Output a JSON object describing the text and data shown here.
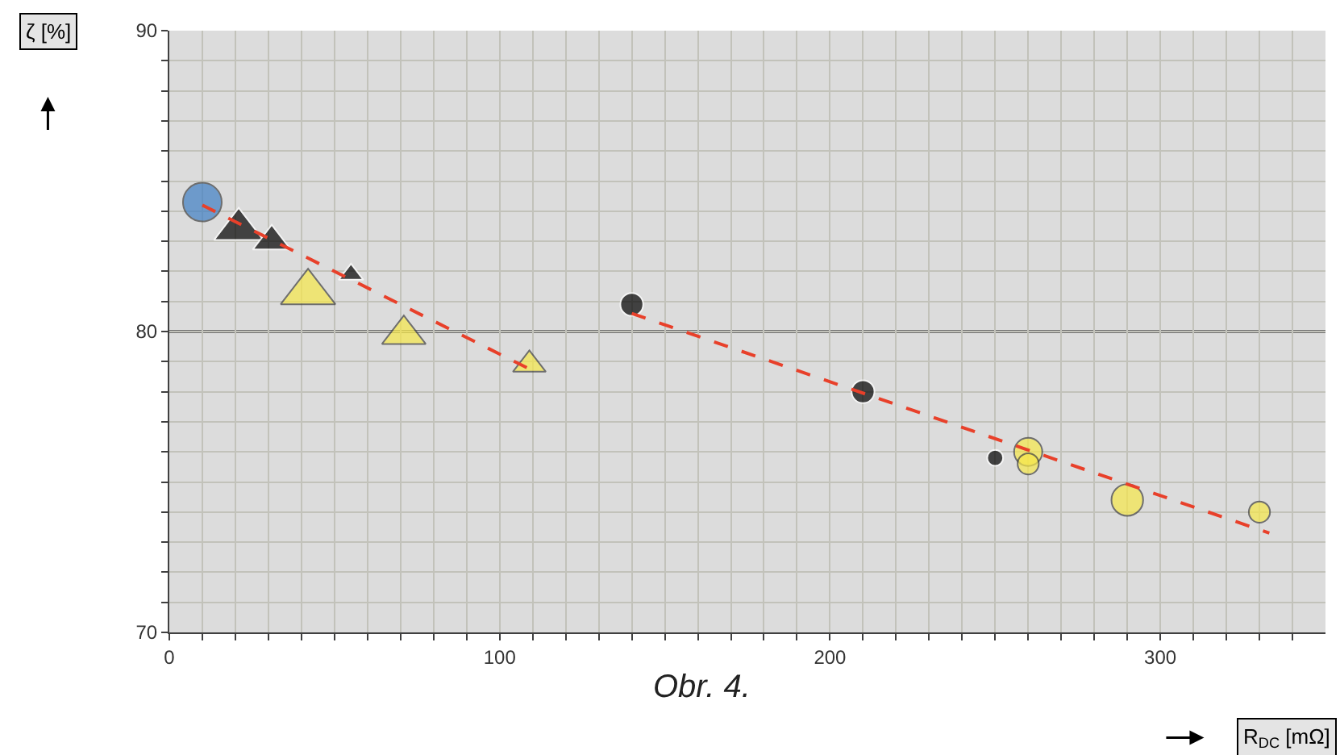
{
  "chart_data": {
    "type": "bubble",
    "xlabel": "R$_{DC}$ [mΩ]",
    "ylabel": "ζ [%]",
    "annotations": [
      "Obr. 4."
    ],
    "xlim": [
      0,
      350
    ],
    "ylim": [
      70,
      90
    ],
    "xticks": [
      0,
      {
        "value": 10,
        "label": null
      },
      {
        "value": 20,
        "label": null
      },
      {
        "value": 30,
        "label": null
      },
      {
        "value": 40,
        "label": null
      },
      {
        "value": 50,
        "label": null
      },
      {
        "value": 60,
        "label": null
      },
      {
        "value": 70,
        "label": null
      },
      {
        "value": 80,
        "label": null
      },
      {
        "value": 90,
        "label": null
      },
      100,
      {
        "value": 110,
        "label": null
      },
      {
        "value": 120,
        "label": null
      },
      {
        "value": 130,
        "label": null
      },
      {
        "value": 140,
        "label": null
      },
      {
        "value": 150,
        "label": null
      },
      {
        "value": 160,
        "label": null
      },
      {
        "value": 170,
        "label": null
      },
      {
        "value": 180,
        "label": null
      },
      {
        "value": 190,
        "label": null
      },
      200,
      {
        "value": 210,
        "label": null
      },
      {
        "value": 220,
        "label": null
      },
      {
        "value": 230,
        "label": null
      },
      {
        "value": 240,
        "label": null
      },
      {
        "value": 250,
        "label": null
      },
      {
        "value": 260,
        "label": null
      },
      {
        "value": 270,
        "label": null
      },
      {
        "value": 280,
        "label": null
      },
      {
        "value": 290,
        "label": null
      },
      300,
      {
        "value": 310,
        "label": null
      },
      {
        "value": 320,
        "label": null
      },
      {
        "value": 330,
        "label": null
      },
      {
        "value": 340,
        "label": null
      }
    ],
    "yticks": [
      70,
      {
        "value": 71,
        "label": null
      },
      {
        "value": 72,
        "label": null
      },
      {
        "value": 73,
        "label": null
      },
      {
        "value": 74,
        "label": null
      },
      {
        "value": 75,
        "label": null
      },
      {
        "value": 76,
        "label": null
      },
      {
        "value": 77,
        "label": null
      },
      {
        "value": 78,
        "label": null
      },
      {
        "value": 79,
        "label": null
      },
      80,
      {
        "value": 81,
        "label": null
      },
      {
        "value": 82,
        "label": null
      },
      {
        "value": 83,
        "label": null
      },
      {
        "value": 84,
        "label": null
      },
      {
        "value": 85,
        "label": null
      },
      {
        "value": 86,
        "label": null
      },
      {
        "value": 87,
        "label": null
      },
      {
        "value": 88,
        "label": null
      },
      {
        "value": 89,
        "label": null
      },
      90
    ],
    "grid": true,
    "legend": false,
    "ref_lines": [
      {
        "axis": "y",
        "value": 80,
        "label": null,
        "color": "#707070"
      }
    ],
    "series": [
      {
        "marker": "circle",
        "color": "#3f7fc4",
        "x": [
          10
        ],
        "values": [
          84.3
        ],
        "sizes": [
          1
        ]
      },
      {
        "marker": "triangle",
        "color": "#000000",
        "x": [
          21,
          31,
          55
        ],
        "values": [
          83.4,
          83.0,
          81.9
        ],
        "sizes": [
          0.67,
          0.4,
          0.17
        ]
      },
      {
        "marker": "triangle",
        "color": "#f7e84a",
        "x": [
          42,
          71,
          109
        ],
        "values": [
          81.3,
          79.9,
          78.9
        ],
        "sizes": [
          0.83,
          0.53,
          0.3
        ]
      },
      {
        "marker": "circle",
        "color": "#000000",
        "x": [
          140,
          210,
          250
        ],
        "values": [
          80.9,
          78.0,
          75.8
        ],
        "sizes": [
          0.35,
          0.35,
          0.17
        ]
      },
      {
        "marker": "circle",
        "color": "#f7e84a",
        "x": [
          260,
          260,
          290,
          330
        ],
        "values": [
          76.0,
          75.6,
          74.4,
          74.0
        ],
        "sizes": [
          0.53,
          0.3,
          0.67,
          0.3
        ]
      },
      {
        "type": "line",
        "line_style": "dashed",
        "color": "#e8402a",
        "x": [
          10,
          110
        ],
        "values": [
          84.2,
          78.7
        ]
      },
      {
        "type": "line",
        "line_style": "dashed",
        "color": "#e8402a",
        "x": [
          140,
          333
        ],
        "values": [
          80.6,
          73.3
        ]
      }
    ]
  }
}
